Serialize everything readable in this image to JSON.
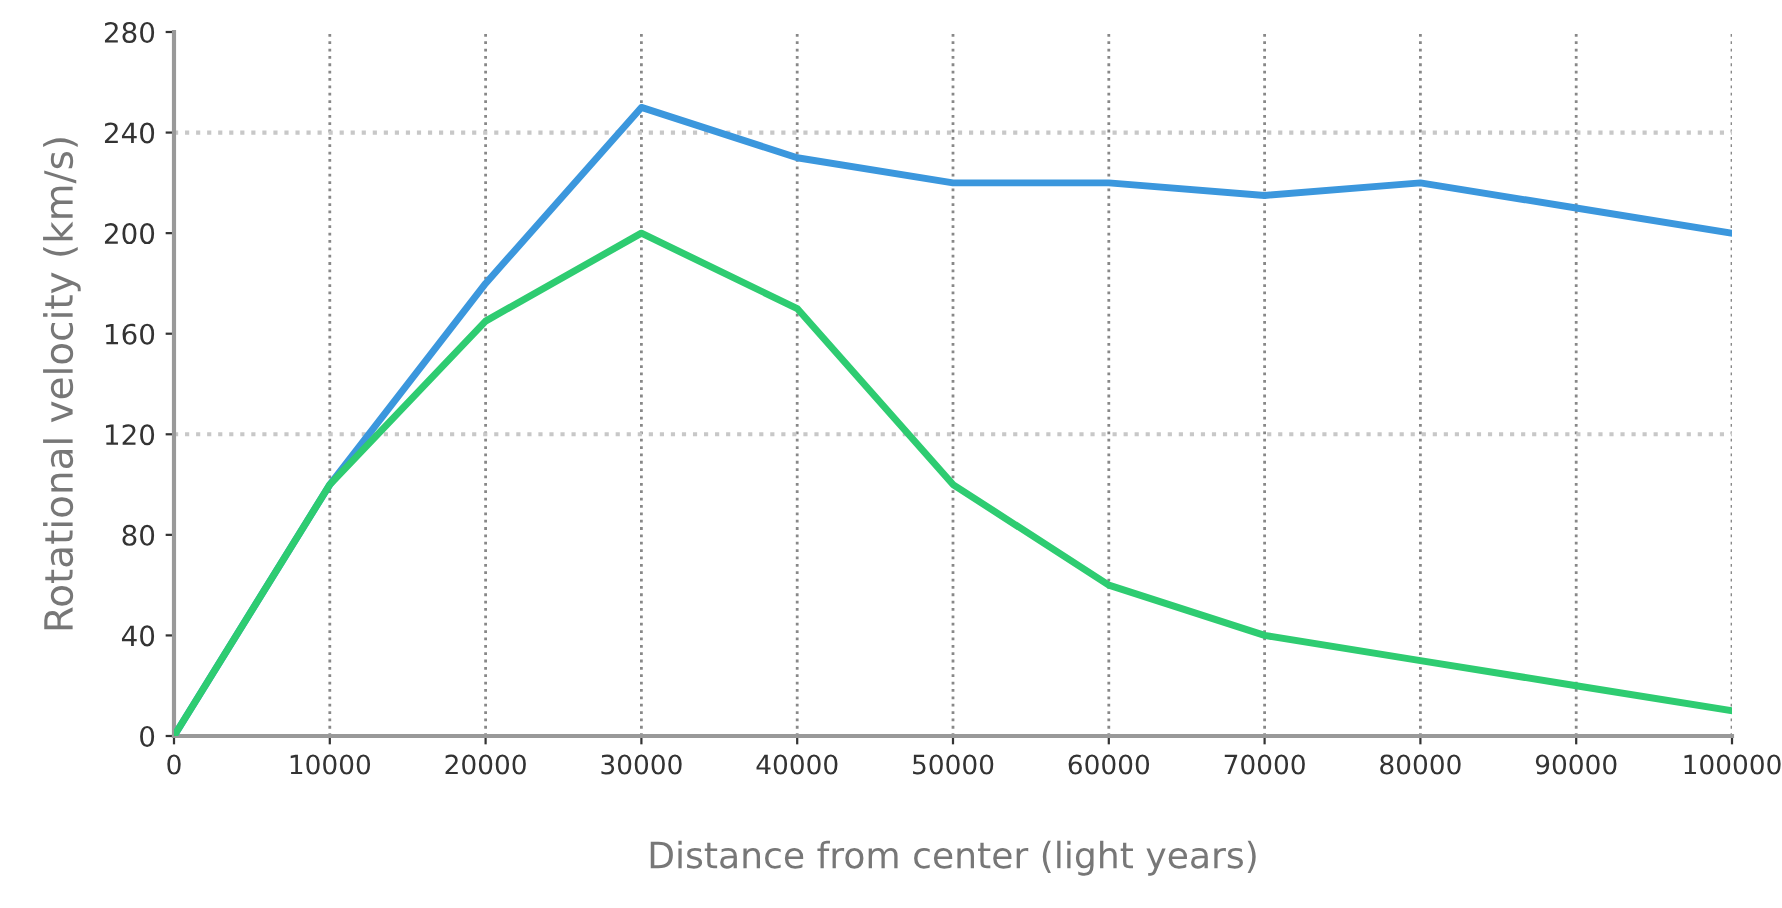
{
  "chart_data": {
    "type": "line",
    "xlabel": "Distance from center (light years)",
    "ylabel": "Rotational velocity (km/s)",
    "x": [
      0,
      10000,
      20000,
      30000,
      40000,
      50000,
      60000,
      70000,
      80000,
      90000,
      100000
    ],
    "series": [
      {
        "color": "#3b97dd",
        "values": [
          0,
          100,
          180,
          250,
          230,
          220,
          220,
          215,
          220,
          210,
          200
        ]
      },
      {
        "color": "#2ecc71",
        "values": [
          0,
          100,
          165,
          200,
          170,
          100,
          60,
          40,
          30,
          20,
          10
        ]
      }
    ],
    "xlim": [
      0,
      100000
    ],
    "ylim": [
      0,
      280
    ],
    "xticks": [
      0,
      10000,
      20000,
      30000,
      40000,
      50000,
      60000,
      70000,
      80000,
      90000,
      100000
    ],
    "yticks": [
      0,
      40,
      80,
      120,
      160,
      200,
      240,
      280
    ],
    "grid": "x",
    "ref_lines": [
      {
        "axis": "y",
        "value": 120,
        "color": "#c8c8c8",
        "line_style": "dotted"
      },
      {
        "axis": "y",
        "value": 240,
        "color": "#c8c8c8",
        "line_style": "dotted"
      }
    ],
    "line_style": "solid",
    "marker": "none"
  }
}
